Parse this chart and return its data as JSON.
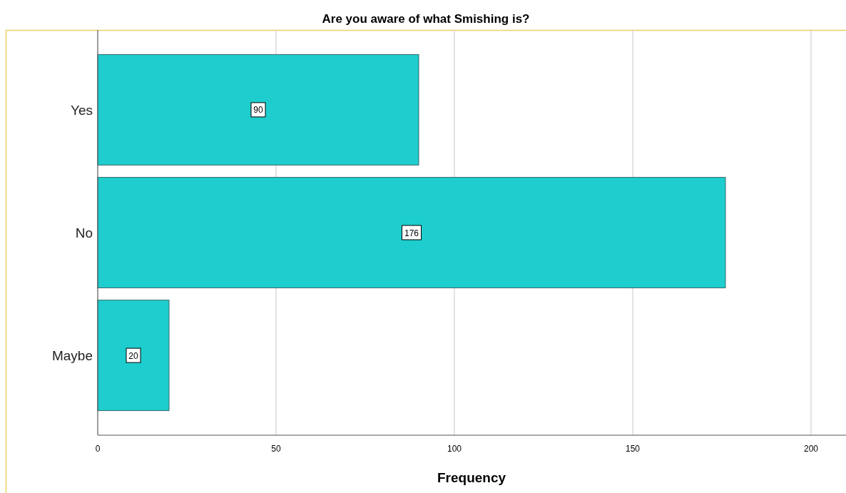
{
  "chart_data": {
    "type": "bar",
    "orientation": "horizontal",
    "title": "Are you aware of what Smishing is?",
    "xlabel": "Frequency",
    "categories": [
      "Yes",
      "No",
      "Maybe"
    ],
    "values": [
      90,
      176,
      20
    ],
    "color": "#1ecdcd",
    "data_labels": true,
    "xlim": [
      0,
      210
    ],
    "xticks": [
      0,
      50,
      100,
      150,
      200
    ],
    "grid": "x"
  }
}
